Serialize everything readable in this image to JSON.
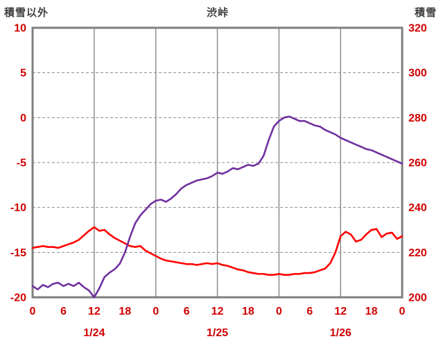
{
  "chart_data": {
    "type": "line",
    "title": "渋峠",
    "legend": "none",
    "grid": {
      "horizontal": "dashed",
      "vertical": "solid"
    },
    "colors": {
      "tick_label": "#D00000",
      "axis_title": "#3F3F3F",
      "grid": "#8C8C8C",
      "border": "#7F7F7F",
      "background": "#FFFFFF"
    },
    "left_axis": {
      "title": "積雪以外",
      "min": -20,
      "max": 10,
      "ticks": [
        10,
        5,
        0,
        -5,
        -10,
        -15,
        -20
      ]
    },
    "right_axis": {
      "title": "積雪",
      "min": 200,
      "max": 320,
      "ticks": [
        320,
        300,
        280,
        260,
        240,
        220,
        200
      ]
    },
    "x_axis": {
      "start_hour": 0,
      "end_hour": 72,
      "tick_hours": [
        0,
        6,
        12,
        18,
        24,
        30,
        36,
        42,
        48,
        54,
        60,
        66,
        72
      ],
      "tick_labels": [
        "0",
        "6",
        "12",
        "18",
        "0",
        "6",
        "12",
        "18",
        "0",
        "6",
        "12",
        "18",
        "0"
      ],
      "grid_hours": [
        12,
        24,
        36,
        48,
        60
      ],
      "date_labels": [
        {
          "label": "1/24",
          "hour": 12
        },
        {
          "label": "1/25",
          "hour": 36
        },
        {
          "label": "1/26",
          "hour": 60
        }
      ]
    },
    "series": [
      {
        "name": "sekisetsu-igai-red",
        "axis": "left",
        "color": "#FF0000",
        "start_hour": 0,
        "interval_hours": 1,
        "values": [
          -14.5,
          -14.4,
          -14.3,
          -14.4,
          -14.4,
          -14.5,
          -14.3,
          -14.1,
          -13.9,
          -13.6,
          -13.1,
          -12.6,
          -12.2,
          -12.6,
          -12.5,
          -13.0,
          -13.4,
          -13.7,
          -14.0,
          -14.3,
          -14.4,
          -14.3,
          -14.8,
          -15.1,
          -15.4,
          -15.7,
          -15.9,
          -16.0,
          -16.1,
          -16.2,
          -16.3,
          -16.3,
          -16.4,
          -16.3,
          -16.2,
          -16.3,
          -16.2,
          -16.4,
          -16.5,
          -16.7,
          -16.9,
          -17.0,
          -17.2,
          -17.3,
          -17.4,
          -17.4,
          -17.5,
          -17.5,
          -17.4,
          -17.5,
          -17.5,
          -17.4,
          -17.4,
          -17.3,
          -17.3,
          -17.2,
          -17.0,
          -16.8,
          -16.2,
          -15.0,
          -13.2,
          -12.7,
          -13.0,
          -13.8,
          -13.6,
          -13.0,
          -12.5,
          -12.4,
          -13.3,
          -12.9,
          -12.8,
          -13.5,
          -13.2
        ]
      },
      {
        "name": "sekisetsu-purple",
        "axis": "right",
        "color": "#7030A0",
        "start_hour": 0,
        "interval_hours": 1,
        "values": [
          205,
          203.5,
          205.5,
          204.5,
          206,
          206.5,
          205,
          206,
          205,
          206.5,
          204.5,
          203,
          200,
          204,
          209,
          211,
          212.5,
          215,
          220,
          227,
          233,
          236.5,
          239,
          241.5,
          243,
          243.5,
          242.5,
          244,
          246,
          248.5,
          250,
          251,
          252,
          252.5,
          253,
          254,
          255.5,
          255,
          256,
          257.5,
          257,
          258,
          259,
          258.5,
          259.5,
          263,
          270,
          276,
          278.5,
          280,
          280.5,
          279.5,
          278.5,
          278.5,
          277.5,
          276.5,
          276,
          274.5,
          273.5,
          272.5,
          271,
          270,
          269,
          268,
          267,
          266,
          265.5,
          264.5,
          263.5,
          262.5,
          261.5,
          260.5,
          259.5
        ]
      }
    ]
  }
}
